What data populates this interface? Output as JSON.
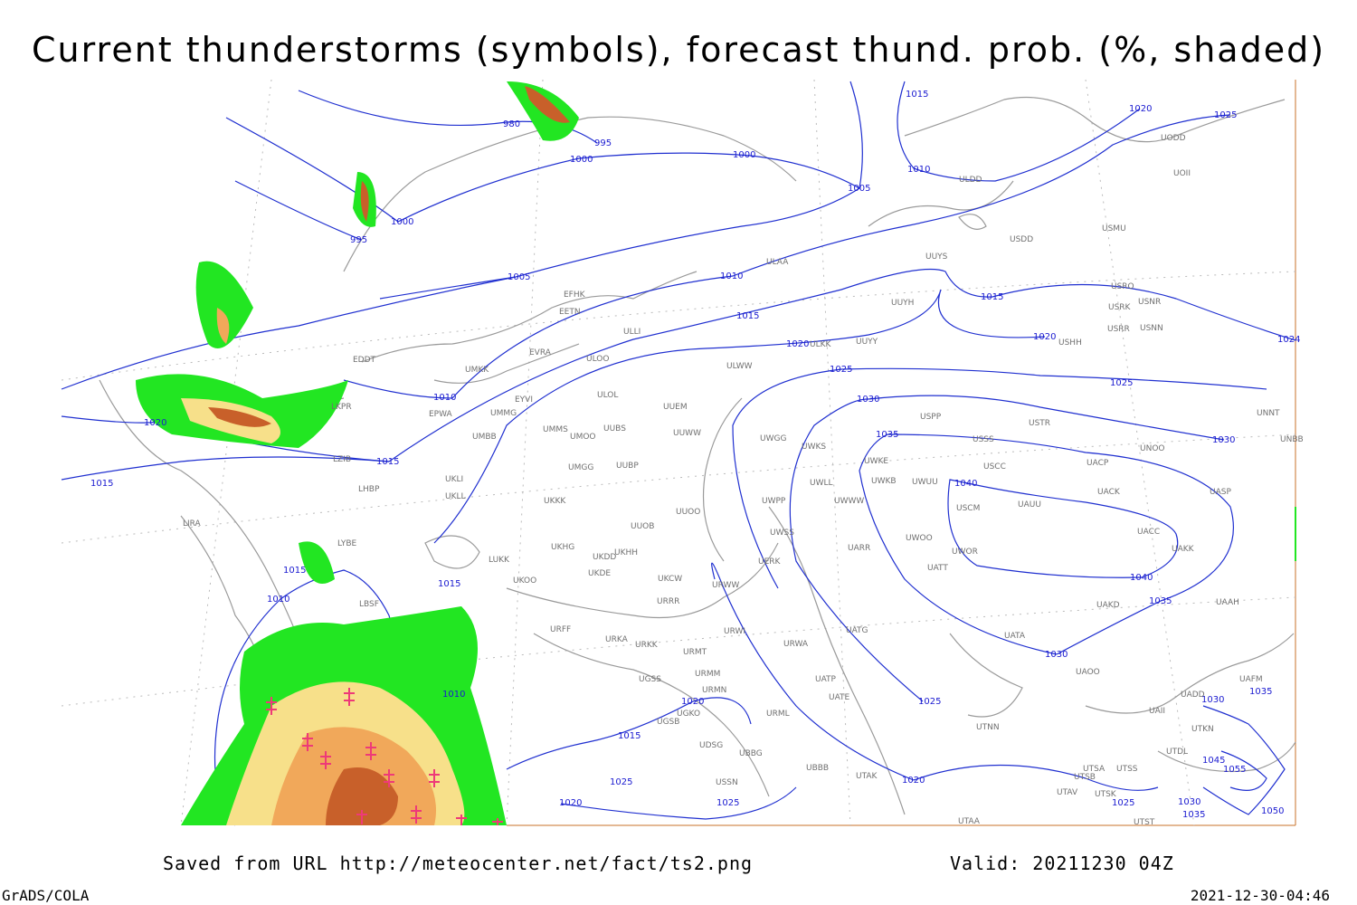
{
  "header": {
    "title": "Current thunderstorms (symbols), forecast thund. prob. (%, shaded)"
  },
  "footer": {
    "source": "Saved from URL http://meteocenter.net/fact/ts2.png",
    "valid": "Valid: 20211230 04Z",
    "software": "GrADS/COLA",
    "timestamp": "2021-12-30-04:46"
  },
  "map": {
    "isobar_labels": [
      980,
      995,
      1000,
      1000,
      1015,
      1020,
      1025,
      1010,
      1005,
      1000,
      995,
      1005,
      1010,
      1015,
      1015,
      1020,
      1024,
      1020,
      1025,
      1025,
      1030,
      1010,
      1020,
      1035,
      1030,
      1015,
      1015,
      1040,
      1015,
      1010,
      1015,
      1040,
      1035,
      1030,
      1010,
      1020,
      1025,
      1030,
      1035,
      1015,
      1025,
      1020,
      1020,
      1025,
      1025,
      1045,
      1055,
      1030,
      1035,
      1050
    ],
    "stations": [
      "ULDD",
      "UODD",
      "UOII",
      "USDD",
      "USMU",
      "ULAA",
      "UUYS",
      "USRO",
      "USRK",
      "USNR",
      "UUYH",
      "USRR",
      "USNN",
      "USHH",
      "EFHK",
      "EETN",
      "ULLI",
      "ULKK",
      "UUYY",
      "EVRA",
      "ULOO",
      "ULWW",
      "EDDT",
      "UMKK",
      "ULOL",
      "EYVI",
      "UUEM",
      "EPWA",
      "UMMG",
      "USPP",
      "USTR",
      "UMMS",
      "UMOO",
      "UUBS",
      "UUWW",
      "UWGG",
      "UWKS",
      "USSS",
      "UNOO",
      "UNNT",
      "UNBB",
      "UMBB",
      "LKPR",
      "LZIB",
      "UMGG",
      "UUBP",
      "UWKE",
      "USCC",
      "UACP",
      "UKLI",
      "UKLL",
      "LHBP",
      "UWLL",
      "UWKB",
      "UWUU",
      "UACK",
      "UASP",
      "UKKK",
      "UWPP",
      "UWWW",
      "USCM",
      "UAUU",
      "UUOO",
      "LIRA",
      "UUOB",
      "UWSS",
      "UWOO",
      "UACC",
      "UAKK",
      "LYBE",
      "UKHG",
      "UKDD",
      "UKHH",
      "UWOR",
      "UARR",
      "LUKK",
      "UATT",
      "UKDE",
      "UKOO",
      "UKCW",
      "URWW",
      "UERK",
      "LBSF",
      "URRR",
      "UAKD",
      "UAAH",
      "UATG",
      "URFF",
      "URKA",
      "URWI",
      "UATA",
      "URKK",
      "URWA",
      "URMT",
      "URMM",
      "UAOO",
      "UATP",
      "UGSS",
      "URMN",
      "UATE",
      "UADD",
      "UAFM",
      "UGKO",
      "URML",
      "UTNN",
      "UGSB",
      "UBBG",
      "UBBB",
      "UDSG",
      "UTAK",
      "USSN",
      "UTSA",
      "UTSB",
      "UTSS",
      "UTAV",
      "UTSK",
      "UTAA",
      "UTST",
      "UTKN",
      "UTDL",
      "UAII"
    ]
  }
}
